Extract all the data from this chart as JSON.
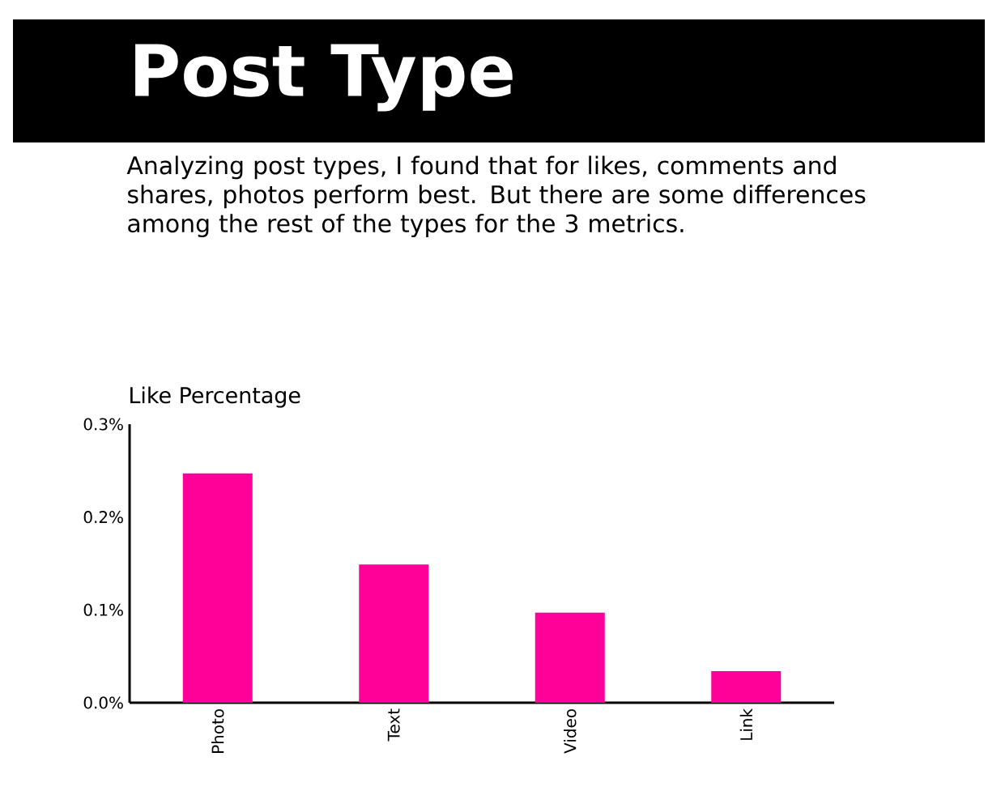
{
  "chart_data": {
    "type": "bar",
    "title": "Post Type",
    "subtitle": "Analyzing post types, I found that for likes, comments and shares, photos perform best. But there are some differences among the rest of the types for the 3 metrics.",
    "ylabel": "Like Percentage",
    "categories": [
      "Photo",
      "Text",
      "Video",
      "Link"
    ],
    "values": [
      0.247,
      0.149,
      0.097,
      0.034
    ],
    "color": "#ff0099",
    "ylim": [
      0,
      0.3
    ],
    "yticks": [
      {
        "value": 0,
        "label": "0.0%"
      },
      {
        "value": 0.1,
        "label": "0.1%"
      },
      {
        "value": 0.2,
        "label": "0.2%"
      },
      {
        "value": 0.3,
        "label": "0.3%"
      }
    ],
    "grid": false
  }
}
